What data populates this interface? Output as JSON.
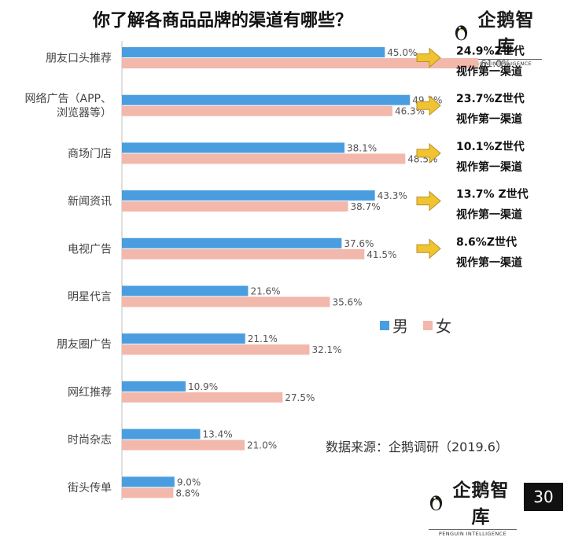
{
  "page": {
    "title": "你了解各商品品牌的渠道有哪些？",
    "page_number": "30",
    "logo": {
      "name": "企鹅智库",
      "subtitle": "PENGUIN INTELLIGENCE"
    }
  },
  "chart_data": {
    "type": "bar",
    "orientation": "horizontal",
    "title": "你了解各商品品牌的渠道有哪些？",
    "categories": [
      [
        "朋友口头推荐"
      ],
      [
        "网络广告（APP、",
        "浏览器等）"
      ],
      [
        "商场门店"
      ],
      [
        "新闻资讯"
      ],
      [
        "电视广告"
      ],
      [
        "明星代言"
      ],
      [
        "朋友圈广告"
      ],
      [
        "网红推荐"
      ],
      [
        "时尚杂志"
      ],
      [
        "街头传单"
      ]
    ],
    "series": [
      {
        "name": "男",
        "color": "#4a9ee0",
        "values": [
          45.0,
          49.3,
          38.1,
          43.3,
          37.6,
          21.6,
          21.1,
          10.9,
          13.4,
          9.0
        ],
        "labels": [
          "45.0%",
          "49.3%",
          "38.1%",
          "43.3%",
          "37.6%",
          "21.6%",
          "21.1%",
          "10.9%",
          "13.4%",
          "9.0%"
        ]
      },
      {
        "name": "女",
        "color": "#f2b8ab",
        "values": [
          61.0,
          46.3,
          48.5,
          38.7,
          41.5,
          35.6,
          32.1,
          27.5,
          21.0,
          8.8
        ],
        "labels": [
          "61.0%",
          "46.3%",
          "48.5%",
          "38.7%",
          "41.5%",
          "35.6%",
          "32.1%",
          "27.5%",
          "21.0%",
          "8.8%"
        ]
      }
    ],
    "xlim": [
      0,
      70
    ],
    "grid": false,
    "legend_position": "right",
    "callouts": [
      {
        "category_index": 0,
        "lines": [
          "24.9%Z世代",
          "视作第一渠道"
        ]
      },
      {
        "category_index": 1,
        "lines": [
          "23.7%Z世代",
          "视作第一渠道"
        ]
      },
      {
        "category_index": 2,
        "lines": [
          "10.1%Z世代",
          "视作第一渠道"
        ]
      },
      {
        "category_index": 3,
        "lines": [
          "13.7% Z世代",
          "视作第一渠道"
        ]
      },
      {
        "category_index": 4,
        "lines": [
          "8.6%Z世代",
          "视作第一渠道"
        ]
      }
    ],
    "callout_arrow_color": "#f0c330",
    "source": "数据来源：企鹅调研（2019.6）"
  }
}
